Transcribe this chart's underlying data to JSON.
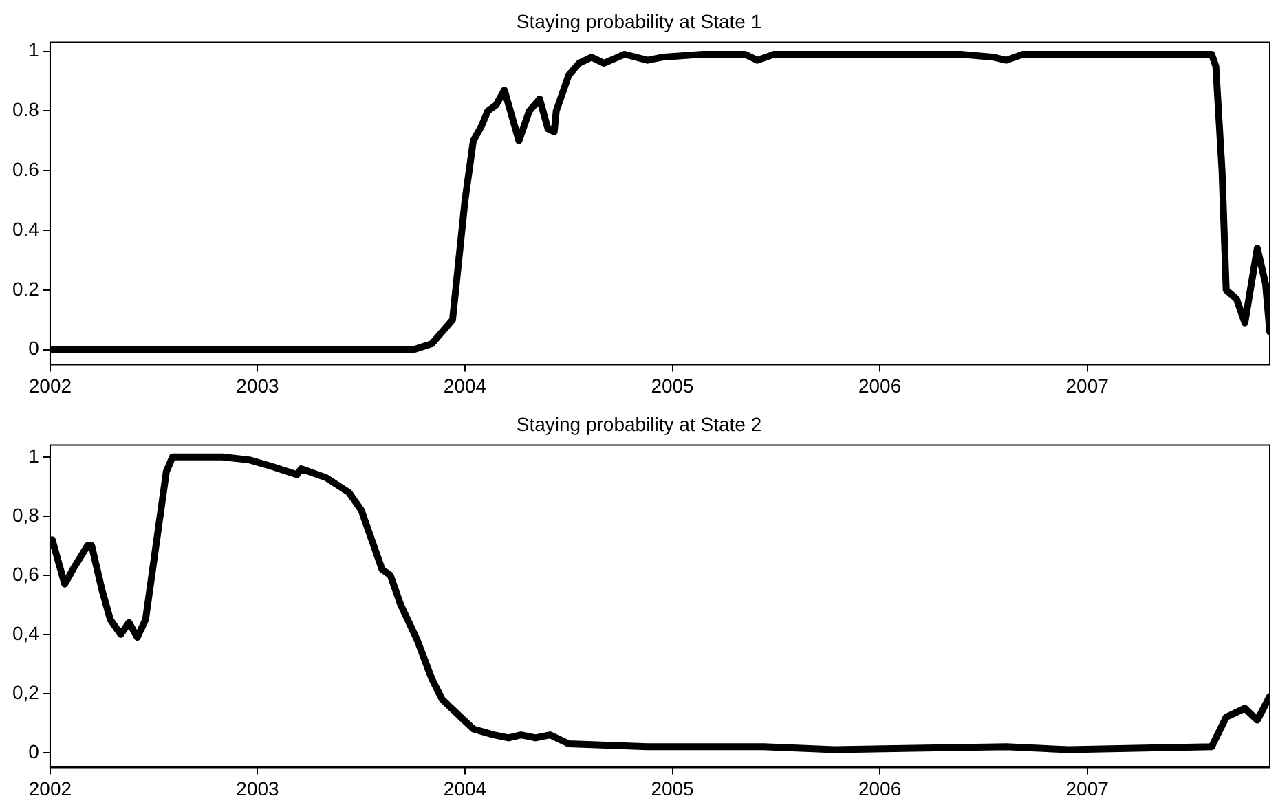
{
  "chart_data": [
    {
      "type": "line",
      "title": "Staying probability at State 1",
      "xlim": [
        2002,
        2007.88
      ],
      "xticks": [
        2002,
        2003,
        2004,
        2005,
        2006,
        2007
      ],
      "ylim": [
        -0.05,
        1.03
      ],
      "yticks": [
        0,
        0.2,
        0.4,
        0.6,
        0.8,
        1
      ],
      "grid": false,
      "legend": false,
      "marker": "none",
      "line_style": "solid",
      "series": [
        {
          "color": "#000000",
          "x": [
            2002.0,
            2003.75,
            2003.84,
            2003.94,
            2003.97,
            2004.0,
            2004.04,
            2004.08,
            2004.11,
            2004.15,
            2004.19,
            2004.26,
            2004.31,
            2004.36,
            2004.4,
            2004.43,
            2004.44,
            2004.5,
            2004.55,
            2004.61,
            2004.67,
            2004.77,
            2004.88,
            2004.95,
            2005.15,
            2005.35,
            2005.41,
            2005.49,
            2005.71,
            2006.05,
            2006.39,
            2006.55,
            2006.61,
            2006.69,
            2007.6,
            2007.62,
            2007.65,
            2007.67,
            2007.72,
            2007.76,
            2007.82,
            2007.86,
            2007.88
          ],
          "values": [
            0,
            0,
            0.02,
            0.1,
            0.3,
            0.5,
            0.7,
            0.75,
            0.8,
            0.82,
            0.87,
            0.7,
            0.8,
            0.84,
            0.74,
            0.73,
            0.8,
            0.92,
            0.96,
            0.98,
            0.96,
            0.99,
            0.97,
            0.98,
            0.99,
            0.99,
            0.97,
            0.99,
            0.99,
            0.99,
            0.99,
            0.98,
            0.97,
            0.99,
            0.99,
            0.95,
            0.6,
            0.2,
            0.17,
            0.09,
            0.34,
            0.22,
            0.06
          ]
        }
      ]
    },
    {
      "type": "line",
      "title": "Staying probability at State 2",
      "xlim": [
        2002,
        2007.88
      ],
      "xticks": [
        2002,
        2003,
        2004,
        2005,
        2006,
        2007
      ],
      "ylim": [
        -0.05,
        1.04
      ],
      "yticks": [
        0,
        {
          "value": 0.2,
          "label": "0,2"
        },
        {
          "value": 0.4,
          "label": "0,4"
        },
        {
          "value": 0.6,
          "label": "0,6"
        },
        {
          "value": 0.8,
          "label": "0,8"
        },
        1
      ],
      "grid": false,
      "legend": false,
      "marker": "none",
      "line_style": "solid",
      "series": [
        {
          "color": "#000000",
          "x": [
            2002.01,
            2002.07,
            2002.11,
            2002.18,
            2002.2,
            2002.25,
            2002.29,
            2002.34,
            2002.38,
            2002.42,
            2002.46,
            2002.49,
            2002.53,
            2002.56,
            2002.59,
            2002.83,
            2002.96,
            2003.06,
            2003.19,
            2003.21,
            2003.33,
            2003.44,
            2003.5,
            2003.57,
            2003.6,
            2003.64,
            2003.69,
            2003.77,
            2003.84,
            2003.89,
            2003.98,
            2004.04,
            2004.14,
            2004.21,
            2004.27,
            2004.34,
            2004.41,
            2004.5,
            2004.88,
            2005.44,
            2005.78,
            2006.61,
            2006.91,
            2007.6,
            2007.67,
            2007.76,
            2007.82,
            2007.88
          ],
          "values": [
            0.72,
            0.57,
            0.62,
            0.7,
            0.7,
            0.55,
            0.45,
            0.4,
            0.44,
            0.39,
            0.45,
            0.6,
            0.8,
            0.95,
            1.0,
            1.0,
            0.99,
            0.97,
            0.94,
            0.96,
            0.93,
            0.88,
            0.82,
            0.68,
            0.62,
            0.6,
            0.5,
            0.38,
            0.25,
            0.18,
            0.12,
            0.08,
            0.06,
            0.05,
            0.06,
            0.05,
            0.06,
            0.03,
            0.02,
            0.02,
            0.01,
            0.02,
            0.01,
            0.02,
            0.12,
            0.15,
            0.11,
            0.19
          ]
        }
      ]
    }
  ]
}
